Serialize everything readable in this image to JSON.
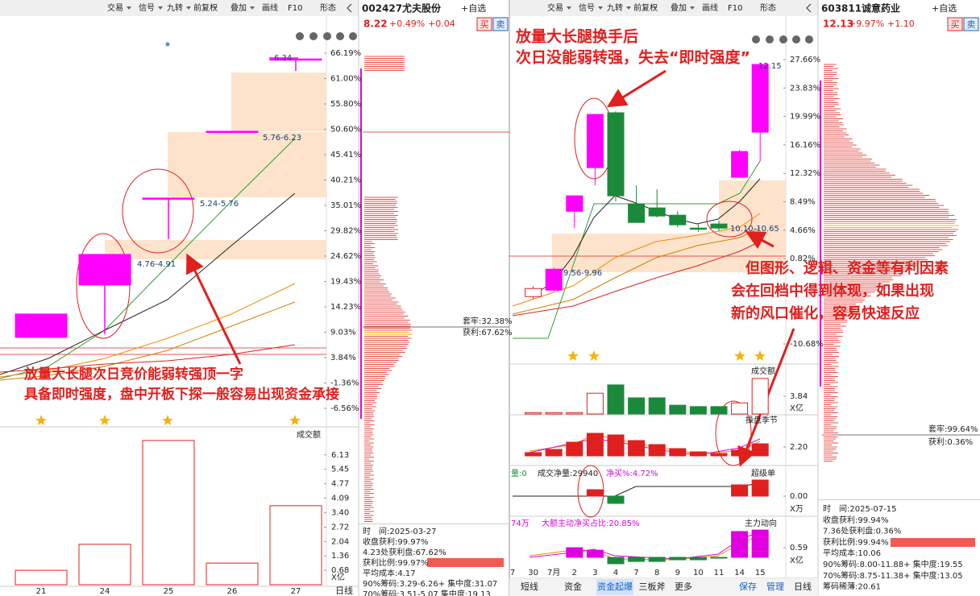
{
  "left": {
    "toolbar": [
      "交易",
      "信号",
      "九转",
      "前复权",
      "叠加",
      "画线",
      "F10",
      "形态"
    ],
    "price_axis": [
      {
        "value": 66.19,
        "label": "66.19%"
      },
      {
        "value": 61.0,
        "label": "61.00%"
      },
      {
        "value": 55.8,
        "label": "55.80%"
      },
      {
        "value": 50.6,
        "label": "50.60%"
      },
      {
        "value": 45.41,
        "label": "45.41%"
      },
      {
        "value": 40.21,
        "label": "40.21%"
      },
      {
        "value": 35.01,
        "label": "35.01%"
      },
      {
        "value": 29.82,
        "label": "29.82%"
      },
      {
        "value": 24.62,
        "label": "24.62%"
      },
      {
        "value": 19.43,
        "label": "19.43%"
      },
      {
        "value": 14.23,
        "label": "14.23%"
      },
      {
        "value": 9.03,
        "label": "9.03%"
      },
      {
        "value": 3.84,
        "label": "3.84%"
      },
      {
        "value": -1.36,
        "label": "-1.36%"
      },
      {
        "value": -6.56,
        "label": "-6.56%"
      }
    ],
    "dates": [
      "21",
      "24",
      "25",
      "26",
      "27"
    ],
    "candles": [
      {
        "open": 7.97,
        "close": 12.76,
        "low": 7.97,
        "high": 12.76
      },
      {
        "open": 18.7,
        "close": 24.97,
        "low": 8.64,
        "high": 24.97
      },
      {
        "open": 36.51,
        "close": 36.51,
        "low": 28.1,
        "high": 36.51
      },
      {
        "open": 50.19,
        "close": 50.19,
        "low": 50.19,
        "high": 50.19
      },
      {
        "open": 65.0,
        "close": 65.0,
        "low": 62.56,
        "high": 65.0
      }
    ],
    "range_labels": [
      "4.76-4.91",
      "5.24-5.76",
      "5.76-6.23",
      "6.34"
    ],
    "annotation": [
      "放量大长腿次日竞价能弱转强顶一字",
      "具备即时强度，盘中开板下探一般容易出现资金承接"
    ],
    "volume": {
      "title": "成交额",
      "unit": "X亿",
      "axis": [
        6.13,
        5.45,
        4.77,
        4.09,
        {
          "value": 3.4,
          "label": "3.40"
        },
        2.72,
        2.04,
        1.36,
        0.68
      ],
      "values": [
        0.68,
        1.91,
        6.81,
        1.02,
        3.73
      ]
    },
    "stock": {
      "code": "002427",
      "name": "尤夫股份",
      "price": "8.22",
      "change_pct": "+0.49%",
      "change": "+0.04"
    },
    "buttons": [
      "买",
      "卖",
      "+自选"
    ],
    "chips": {
      "trapped": "套牢:32.38%",
      "profit": "获利:67.62%",
      "info": [
        "时　间:2025-03-27",
        "收盘获利:99.97%",
        "4.23处获利盘:67.62%",
        "获利比例:99.97%",
        "平均成本:4.17",
        "90%筹码:3.29-6.26+ 集中度:31.07",
        "70%筹码:3.51-5.07 集中度:19.13"
      ]
    },
    "period": "日线"
  },
  "right": {
    "toolbar": [
      "交易",
      "信号",
      "九转",
      "前复权",
      "叠加",
      "画线",
      "F10",
      "形态"
    ],
    "price_axis": [
      {
        "value": 27.66,
        "label": "27.66%"
      },
      {
        "value": 23.83,
        "label": "23.83%"
      },
      {
        "value": 19.99,
        "label": "19.99%"
      },
      {
        "value": 16.16,
        "label": "16.16%"
      },
      {
        "value": 12.32,
        "label": "12.32%"
      },
      {
        "value": 8.49,
        "label": "8.49%"
      },
      {
        "value": 4.66,
        "label": "4.66%"
      },
      {
        "value": 0.82,
        "label": "0.82%"
      },
      {
        "value": -10.68,
        "label": "-10.68%"
      }
    ],
    "dates": [
      "7",
      "30",
      "7月",
      "2",
      "3",
      "4",
      "7",
      "8",
      "9",
      "10",
      "11",
      "14",
      "15"
    ],
    "candles": [
      null,
      {
        "open": -4.3,
        "close": -3.21,
        "low": -4.6,
        "high": -2.9
      },
      {
        "open": -3.43,
        "close": -0.6,
        "low": -3.6,
        "high": -0.4
      },
      {
        "open": 7.2,
        "close": 9.29,
        "low": 4.94,
        "high": 9.29
      },
      {
        "open": 13.09,
        "close": 20.27,
        "low": 10.7,
        "high": 20.27
      },
      {
        "open": 20.49,
        "close": 9.29,
        "low": 8.53,
        "high": 20.7
      },
      {
        "open": 8.2,
        "close": 5.7,
        "low": 5.7,
        "high": 10.7
      },
      {
        "open": 7.66,
        "close": 6.57,
        "low": 6.35,
        "high": 10.16
      },
      {
        "open": 6.68,
        "close": 5.38,
        "low": 5.05,
        "high": 7.22
      },
      {
        "open": 4.94,
        "close": 4.83,
        "low": 4.4,
        "high": 5.49
      },
      {
        "open": 5.49,
        "close": 4.94,
        "low": 4.51,
        "high": 5.92
      },
      {
        "open": 11.79,
        "close": 15.27,
        "low": 11.79,
        "high": 15.49
      },
      {
        "open": 17.88,
        "close": 27.01,
        "low": 13.96,
        "high": 27.01
      }
    ],
    "range_labels": [
      "9.56-9.96",
      "10.10-10.65",
      "12.15"
    ],
    "annotation_top": [
      "放量大长腿换手后",
      "次日没能弱转强，失去“即时强度”"
    ],
    "annotation_bottom": [
      "但图形、逻辑、资金等有利因素",
      "会在回档中得到体现，如果出现",
      "新的风口催化，容易快速反应"
    ],
    "volume": {
      "title": "成交额",
      "unit": "X亿",
      "axis": [
        3.84
      ],
      "values": [
        null,
        0.3,
        0.3,
        0.3,
        4.5,
        6.3,
        3.5,
        3.5,
        1.9,
        1.6,
        1.6,
        2.4,
        7.7
      ]
    },
    "season": {
      "title": "操盘季节",
      "axis": [
        {
          "value": 2.2,
          "label": "2.20"
        }
      ],
      "values": [
        null,
        0.8,
        1.6,
        3.4,
        5.6,
        5.2,
        3.8,
        2.8,
        1.8,
        1.0,
        0.6,
        1.4,
        3.0
      ]
    },
    "super_order": {
      "title": "超级单",
      "axis": [
        {
          "value": 0,
          "label": "0.00"
        }
      ],
      "unit": "X万",
      "labels": [
        "量:0",
        "成交净量:29940",
        "净买%:4.72%"
      ],
      "values": [
        null,
        null,
        null,
        null,
        1.6,
        -1.8,
        null,
        null,
        null,
        null,
        null,
        2.8,
        4.0
      ]
    },
    "main_force": {
      "title": "主力动向",
      "axis": [
        0.59
      ],
      "unit": "X亿",
      "labels": [
        "74万",
        "大额主动净买占比:20.85%"
      ],
      "values": [
        null,
        null,
        null,
        0.59,
        0.44,
        -0.39,
        -0.25,
        -0.25,
        -0.15,
        -0.15,
        -0.05,
        1.58,
        1.67
      ]
    },
    "tabs": [
      "短线",
      "资金",
      "资金起爆",
      "三板斧",
      "更多"
    ],
    "actions": [
      "保存",
      "管理"
    ],
    "stock": {
      "code": "603811",
      "name": "诚意药业",
      "price": "12.13",
      "change_pct": "+9.97%",
      "change": "+1.10"
    },
    "buttons": [
      "买",
      "卖",
      "+自选"
    ],
    "chips": {
      "trapped": "套牢:99.64%",
      "profit": "获利:0.36%",
      "info": [
        "时　间:2025-07-15",
        "收盘获利:99.94%",
        "7.36处获利盘:0.36%",
        "获利比例:99.94%",
        "平均成本:10.06",
        "90%筹码:8.00-11.88+ 集中度:19.55",
        "70%筹码:8.75-11.38+ 集中度:13.05",
        "筹码稀薄:20.61"
      ]
    },
    "period": "日线"
  }
}
